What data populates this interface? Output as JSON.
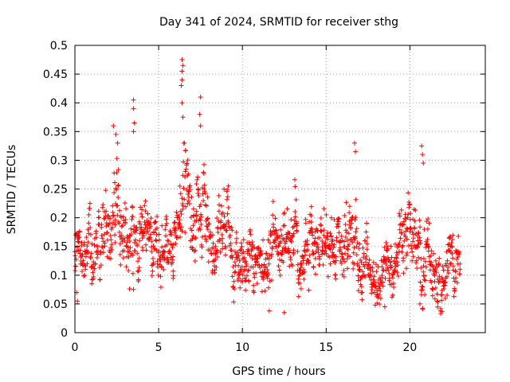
{
  "chart_data": {
    "type": "scatter",
    "title": "Day 341 of 2024, SRMTID for receiver sthg",
    "xlabel": "GPS time / hours",
    "ylabel": "SRMTID / TECUs",
    "xlim": [
      0,
      24.5
    ],
    "ylim": [
      0,
      0.5
    ],
    "x_ticks": [
      0,
      5,
      10,
      15,
      20
    ],
    "x_tick_labels": [
      "0",
      "5",
      "10",
      "15",
      "20"
    ],
    "y_ticks": [
      0,
      0.05,
      0.1,
      0.15,
      0.2,
      0.25,
      0.3,
      0.35,
      0.4,
      0.45,
      0.5
    ],
    "y_tick_labels": [
      "0",
      "0.05",
      "0.1",
      "0.15",
      "0.2",
      "0.25",
      "0.3",
      "0.35",
      "0.4",
      "0.45",
      "0.5"
    ],
    "grid": true,
    "marker": "+",
    "color": "#ff0000",
    "x_data_range": [
      0,
      23
    ],
    "envelope": {
      "hours": [
        0,
        0.5,
        1,
        1.5,
        2,
        2.5,
        3,
        3.5,
        4,
        4.5,
        5,
        5.5,
        6,
        6.5,
        7,
        7.5,
        8,
        8.5,
        9,
        9.5,
        10,
        10.5,
        11,
        11.5,
        12,
        12.5,
        13,
        13.5,
        14,
        14.5,
        15,
        15.5,
        16,
        16.5,
        17,
        17.5,
        18,
        18.5,
        19,
        19.5,
        20,
        20.5,
        21,
        21.5,
        22,
        22.5,
        23
      ],
      "center": [
        0.15,
        0.14,
        0.17,
        0.19,
        0.17,
        0.2,
        0.16,
        0.19,
        0.17,
        0.18,
        0.15,
        0.16,
        0.17,
        0.24,
        0.22,
        0.2,
        0.18,
        0.17,
        0.18,
        0.15,
        0.14,
        0.13,
        0.12,
        0.13,
        0.14,
        0.17,
        0.16,
        0.15,
        0.16,
        0.14,
        0.15,
        0.14,
        0.15,
        0.17,
        0.12,
        0.11,
        0.1,
        0.11,
        0.12,
        0.18,
        0.19,
        0.14,
        0.13,
        0.11,
        0.12,
        0.12,
        0.12
      ],
      "spread": [
        0.05,
        0.05,
        0.07,
        0.07,
        0.07,
        0.09,
        0.07,
        0.09,
        0.06,
        0.06,
        0.06,
        0.06,
        0.06,
        0.11,
        0.1,
        0.09,
        0.07,
        0.07,
        0.07,
        0.06,
        0.06,
        0.06,
        0.06,
        0.07,
        0.07,
        0.08,
        0.07,
        0.07,
        0.07,
        0.06,
        0.06,
        0.06,
        0.06,
        0.08,
        0.06,
        0.05,
        0.05,
        0.05,
        0.06,
        0.08,
        0.08,
        0.07,
        0.07,
        0.06,
        0.06,
        0.06,
        0.06
      ]
    },
    "notable_points": [
      {
        "x": 6.4,
        "y": 0.475
      },
      {
        "x": 6.45,
        "y": 0.465
      },
      {
        "x": 6.4,
        "y": 0.455
      },
      {
        "x": 6.4,
        "y": 0.44
      },
      {
        "x": 6.35,
        "y": 0.43
      },
      {
        "x": 6.4,
        "y": 0.4
      },
      {
        "x": 6.45,
        "y": 0.375
      },
      {
        "x": 7.5,
        "y": 0.41
      },
      {
        "x": 7.45,
        "y": 0.38
      },
      {
        "x": 7.5,
        "y": 0.36
      },
      {
        "x": 3.5,
        "y": 0.405
      },
      {
        "x": 3.5,
        "y": 0.39
      },
      {
        "x": 3.55,
        "y": 0.365
      },
      {
        "x": 3.5,
        "y": 0.35
      },
      {
        "x": 2.3,
        "y": 0.36
      },
      {
        "x": 2.45,
        "y": 0.345
      },
      {
        "x": 2.55,
        "y": 0.33
      },
      {
        "x": 16.7,
        "y": 0.33
      },
      {
        "x": 16.75,
        "y": 0.315
      },
      {
        "x": 20.7,
        "y": 0.325
      },
      {
        "x": 20.75,
        "y": 0.31
      },
      {
        "x": 20.8,
        "y": 0.295
      },
      {
        "x": 12.5,
        "y": 0.035
      },
      {
        "x": 11.6,
        "y": 0.038
      },
      {
        "x": 0.15,
        "y": 0.055
      },
      {
        "x": 0.1,
        "y": 0.07
      },
      {
        "x": 18.5,
        "y": 0.045
      },
      {
        "x": 20.6,
        "y": 0.05
      }
    ]
  }
}
